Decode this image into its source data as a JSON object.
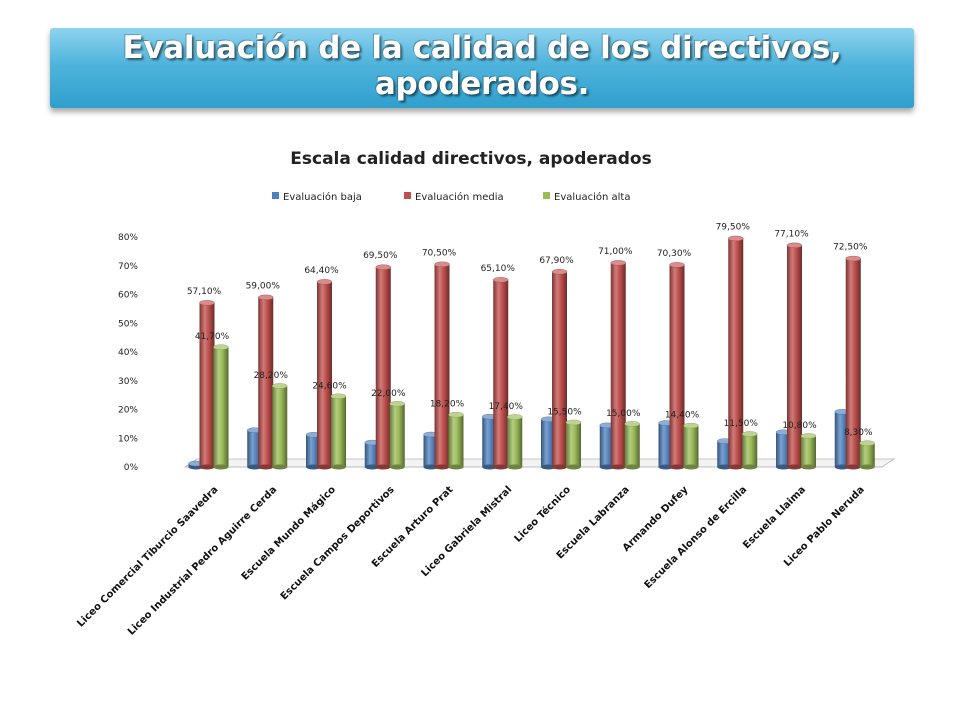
{
  "slide": {
    "title": "Evaluación de la calidad de los directivos, apoderados."
  },
  "chart_data": {
    "type": "bar",
    "title": "Escala calidad directivos, apoderados",
    "categories": [
      "Liceo Comercial Tiburcio Saavedra",
      "Liceo Industrial Pedro Aguirre Cerda",
      "Escuela Mundo Mágico",
      "Escuela Campos Deportivos",
      "Escuela Arturo Prat",
      "Liceo Gabriela Mistral",
      "Liceo Técnico",
      "Escuela Labranza",
      "Armando Dufey",
      "Escuela Alonso de Ercilla",
      "Escuela Llaima",
      "Liceo Pablo Neruda"
    ],
    "series": [
      {
        "name": "Evaluación baja",
        "color": "#4f81bd",
        "values": [
          1.2,
          12.8,
          11.2,
          8.5,
          11.3,
          17.5,
          16.6,
          14.5,
          15.3,
          9.0,
          12.1,
          19.2
        ],
        "labels": []
      },
      {
        "name": "Evaluación media",
        "color": "#c0504d",
        "values": [
          57.1,
          59.0,
          64.4,
          69.5,
          70.5,
          65.1,
          67.9,
          71.0,
          70.3,
          79.5,
          77.1,
          72.5
        ],
        "labels": [
          "57,10%",
          "59,00%",
          "64,40%",
          "69,50%",
          "70,50%",
          "65,10%",
          "67,90%",
          "71,00%",
          "70,30%",
          "79,50%",
          "77,10%",
          "72,50%"
        ]
      },
      {
        "name": "Evaluación alta",
        "color": "#9bbb59",
        "values": [
          41.7,
          28.2,
          24.6,
          22.0,
          18.2,
          17.4,
          15.5,
          15.0,
          14.4,
          11.5,
          10.8,
          8.3
        ],
        "labels": [
          "41,70%",
          "28,20%",
          "24,60%",
          "22,00%",
          "18,20%",
          "17,40%",
          "15,50%",
          "15,00%",
          "14,40%",
          "11,50%",
          "10,80%",
          "8,30%"
        ]
      }
    ],
    "ylim": [
      0,
      80
    ],
    "yticks": [
      "0%",
      "10%",
      "20%",
      "30%",
      "40%",
      "50%",
      "60%",
      "70%",
      "80%"
    ],
    "grid": false,
    "legend_position": "top",
    "style": "3d-cylinder"
  }
}
